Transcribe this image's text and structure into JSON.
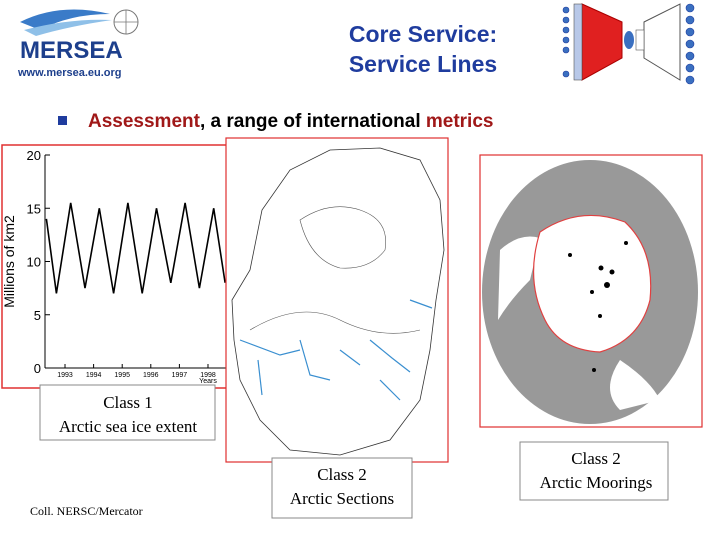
{
  "header": {
    "logo": "MERSEA",
    "url": "www.mersea.eu.org",
    "title": [
      "Core Service:",
      "Service Lines"
    ]
  },
  "bullet": {
    "parts": [
      {
        "text": "Assessment",
        "style": "highlight"
      },
      {
        "text": ", a range of international ",
        "style": "plain"
      },
      {
        "text": "metrics",
        "style": "highlight"
      }
    ]
  },
  "ice_chart": {
    "type": "line",
    "ylabel": "Millions of km2",
    "xlabel": "Years",
    "x": [
      1992.35,
      1992.7,
      1993.2,
      1993.7,
      1994.2,
      1994.7,
      1995.2,
      1995.7,
      1996.2,
      1996.7,
      1997.2,
      1997.7,
      1998.2,
      1998.6
    ],
    "values": [
      14,
      7,
      15.5,
      7.5,
      15,
      7,
      15.5,
      7,
      15,
      8,
      15.5,
      7.5,
      15,
      8
    ],
    "xlim": [
      1992.3,
      1998.7
    ],
    "ylim": [
      0,
      20
    ],
    "yticks": [
      0,
      5,
      10,
      15,
      20
    ],
    "xticks": [
      1993,
      1994,
      1995,
      1996,
      1997,
      1998
    ],
    "color": "#000000"
  },
  "captions": [
    {
      "lines": [
        "Class 1",
        "Arctic sea ice extent"
      ]
    },
    {
      "lines": [
        "Class 2",
        "Arctic Sections"
      ]
    },
    {
      "lines": [
        "Class 2",
        "Arctic Moorings"
      ]
    }
  ],
  "credit": "Coll. NERSC/Mercator"
}
